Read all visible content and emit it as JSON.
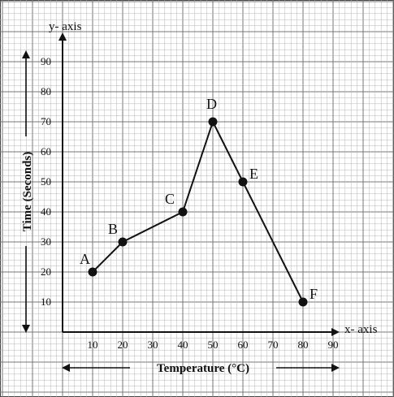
{
  "chart_data": {
    "type": "line",
    "xlabel": "Temperature (°C)",
    "ylabel": "Time (Seconds)",
    "x_axis_name": "x- axis",
    "y_axis_name": "y- axis",
    "xlim": [
      0,
      90
    ],
    "ylim": [
      0,
      90
    ],
    "x_ticks": [
      "10",
      "20",
      "30",
      "40",
      "50",
      "60",
      "70",
      "80",
      "90"
    ],
    "y_ticks": [
      "10",
      "20",
      "30",
      "40",
      "50",
      "60",
      "70",
      "80",
      "90"
    ],
    "grid": true,
    "points": [
      {
        "label": "A",
        "x": 10,
        "y": 20
      },
      {
        "label": "B",
        "x": 20,
        "y": 30
      },
      {
        "label": "C",
        "x": 40,
        "y": 40
      },
      {
        "label": "D",
        "x": 50,
        "y": 70
      },
      {
        "label": "E",
        "x": 60,
        "y": 50
      },
      {
        "label": "F",
        "x": 80,
        "y": 10
      }
    ]
  }
}
